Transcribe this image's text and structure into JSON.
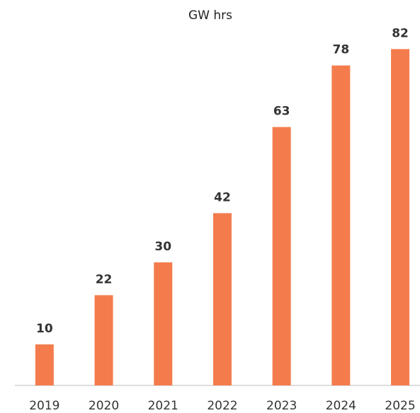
{
  "chart_data": {
    "type": "bar",
    "title": "GW hrs",
    "categories": [
      "2019",
      "2020",
      "2021",
      "2022",
      "2023",
      "2024",
      "2025"
    ],
    "values": [
      10,
      22,
      30,
      42,
      63,
      78,
      82
    ],
    "color": "#f47c4c"
  }
}
